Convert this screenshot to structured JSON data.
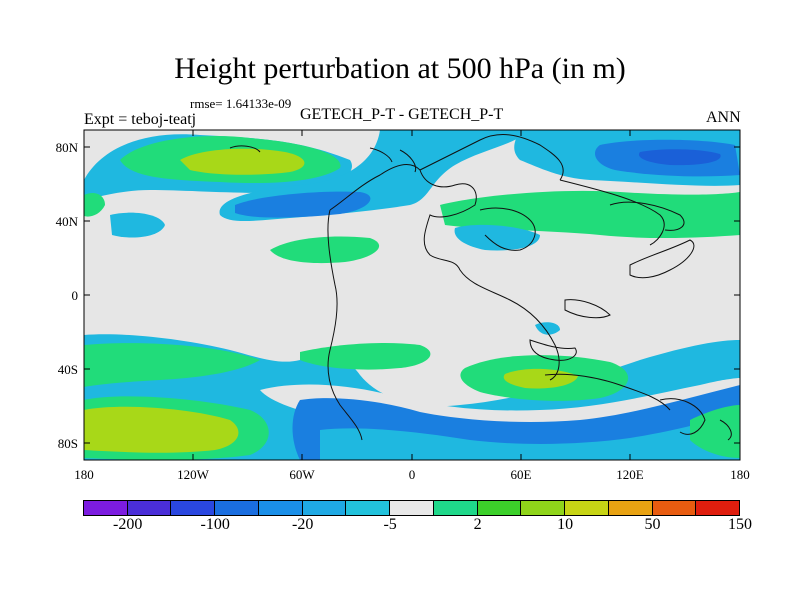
{
  "title": "Height perturbation at 500 hPa (in m)",
  "rmse_label": "rmse= 1.64133e-09",
  "experiment_label": "Expt = teboj-teatj",
  "case_label": "GETECH_P-T - GETECH_P-T",
  "season_label": "ANN",
  "axes": {
    "lat_ticks": [
      "80N",
      "40N",
      "0",
      "40S",
      "80S"
    ],
    "lon_ticks": [
      "180",
      "120W",
      "60W",
      "0",
      "60E",
      "120E",
      "180"
    ]
  },
  "colors": {
    "background": "#e6e6e6",
    "light_blue": "#1fb8e0",
    "blue": "#1a7fe0",
    "green_light": "#21dc7a",
    "green": "#3cd02a",
    "yellow_green": "#a8d818"
  },
  "colorbar": {
    "colors": [
      "#7c1ce0",
      "#4a2ed8",
      "#2a47e0",
      "#1a6ee0",
      "#1a8fe8",
      "#1fa9e4",
      "#22c2dc",
      "#e8e8e8",
      "#1fd88a",
      "#3cd02a",
      "#8fd41a",
      "#c7d415",
      "#e8a212",
      "#e85c10",
      "#e01e0e"
    ],
    "labels": [
      "-200",
      "-100",
      "-20",
      "-5",
      "2",
      "10",
      "50",
      "150"
    ]
  }
}
